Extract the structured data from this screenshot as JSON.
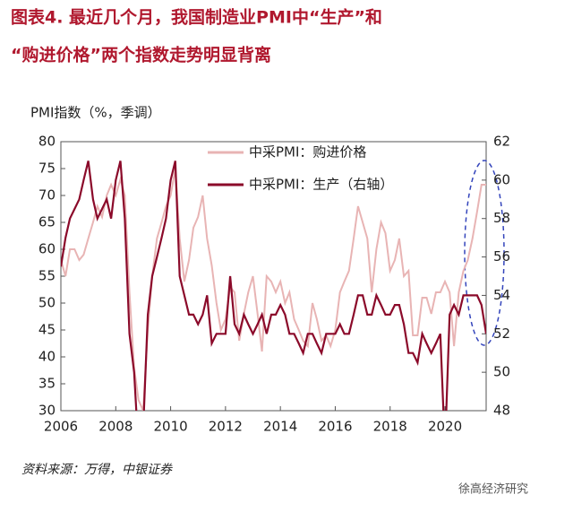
{
  "chart_data": {
    "type": "line",
    "title": "图表4.  最近几个月，我国制造业PMI中“生产”和",
    "subtitle": "“购进价格”两个指数走势明显背离",
    "y_label": "PMI指数（%，季调）",
    "source": "资料来源：万得，中银证券",
    "watermark": "徐高经济研究",
    "x": [
      2006.0,
      2006.17,
      2006.33,
      2006.5,
      2006.67,
      2006.83,
      2007.0,
      2007.17,
      2007.33,
      2007.5,
      2007.67,
      2007.83,
      2008.0,
      2008.17,
      2008.33,
      2008.5,
      2008.67,
      2008.83,
      2009.0,
      2009.17,
      2009.33,
      2009.5,
      2009.67,
      2009.83,
      2010.0,
      2010.17,
      2010.33,
      2010.5,
      2010.67,
      2010.83,
      2011.0,
      2011.17,
      2011.33,
      2011.5,
      2011.67,
      2011.83,
      2012.0,
      2012.17,
      2012.33,
      2012.5,
      2012.67,
      2012.83,
      2013.0,
      2013.17,
      2013.33,
      2013.5,
      2013.67,
      2013.83,
      2014.0,
      2014.17,
      2014.33,
      2014.5,
      2014.67,
      2014.83,
      2015.0,
      2015.17,
      2015.33,
      2015.5,
      2015.67,
      2015.83,
      2016.0,
      2016.17,
      2016.33,
      2016.5,
      2016.67,
      2016.83,
      2017.0,
      2017.17,
      2017.33,
      2017.5,
      2017.67,
      2017.83,
      2018.0,
      2018.17,
      2018.33,
      2018.5,
      2018.67,
      2018.83,
      2019.0,
      2019.17,
      2019.33,
      2019.5,
      2019.67,
      2019.83,
      2020.0,
      2020.17,
      2020.33,
      2020.5,
      2020.67,
      2020.83,
      2021.0,
      2021.17,
      2021.33,
      2021.5
    ],
    "series": [
      {
        "name": "中采PMI：购进价格",
        "color": "#e8b4b4",
        "axis": "y",
        "values": [
          58,
          55,
          60,
          60,
          58,
          59,
          62,
          65,
          68,
          66,
          70,
          72,
          70,
          73,
          70,
          52,
          38,
          32,
          30,
          45,
          55,
          62,
          65,
          68,
          70,
          75,
          62,
          54,
          58,
          64,
          66,
          70,
          62,
          57,
          50,
          45,
          47,
          53,
          52,
          43,
          48,
          52,
          55,
          48,
          41,
          55,
          54,
          52,
          54,
          50,
          52,
          47,
          45,
          43,
          42,
          50,
          47,
          43,
          44,
          42,
          45,
          52,
          54,
          56,
          62,
          68,
          65,
          62,
          52,
          60,
          65,
          63,
          56,
          58,
          62,
          55,
          56,
          44,
          44,
          51,
          51,
          48,
          52,
          52,
          54,
          52,
          42,
          52,
          56,
          58,
          62,
          67,
          72,
          72
        ]
      },
      {
        "name": "中采PMI：生产（右轴）",
        "color": "#8b0a2a",
        "axis": "y2",
        "values": [
          55.5,
          57,
          58,
          58.5,
          59,
          60,
          61,
          59,
          58,
          58.5,
          59,
          58,
          60,
          61,
          58,
          52,
          50,
          46,
          47,
          53,
          55,
          56,
          57,
          58,
          60,
          61,
          55,
          54,
          53,
          53,
          52.5,
          53,
          54,
          51.5,
          52,
          52,
          52,
          55,
          52.5,
          52,
          53,
          52.5,
          52,
          52.5,
          53,
          52,
          53,
          53,
          53.5,
          53,
          52,
          52,
          51.5,
          51,
          52,
          52,
          51.5,
          51,
          52,
          52,
          52,
          52.5,
          52,
          52,
          53,
          54,
          54,
          53,
          53,
          54,
          53.5,
          53,
          53,
          53.5,
          53.5,
          52.5,
          51,
          51,
          50.5,
          52,
          51.5,
          51,
          51.5,
          52,
          46,
          53,
          53.5,
          53,
          54,
          54,
          54,
          54,
          53.5,
          52
        ]
      }
    ],
    "xlim": [
      2006,
      2021.5
    ],
    "xticks": [
      2006,
      2008,
      2010,
      2012,
      2014,
      2016,
      2018,
      2020
    ],
    "ylim": [
      30,
      80
    ],
    "yticks": [
      30,
      35,
      40,
      45,
      50,
      55,
      60,
      65,
      70,
      75,
      80
    ],
    "y2lim": [
      48,
      62
    ],
    "y2ticks": [
      48,
      50,
      52,
      54,
      56,
      58,
      60,
      62
    ],
    "grid": false,
    "legend": "upper right"
  }
}
